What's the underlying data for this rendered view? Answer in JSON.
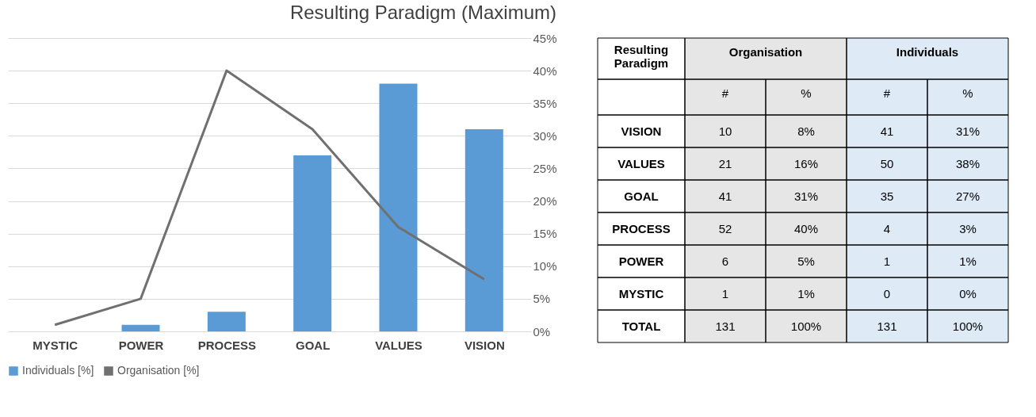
{
  "chart_data": [
    {
      "type": "bar",
      "title": "Resulting Paradigm (Maximum)",
      "categories": [
        "MYSTIC",
        "POWER",
        "PROCESS",
        "GOAL",
        "VALUES",
        "VISION"
      ],
      "series": [
        {
          "name": "Individuals [%]",
          "color": "#5b9bd5",
          "values": [
            0,
            1,
            3,
            27,
            38,
            31
          ]
        },
        {
          "name": "Organisation [%]",
          "type": "line",
          "color": "#707070",
          "values": [
            1,
            5,
            40,
            31,
            16,
            8
          ]
        }
      ],
      "ylim": [
        0,
        45
      ],
      "yticks": [
        {
          "value": 0,
          "label": "0%"
        },
        {
          "value": 5,
          "label": "5%"
        },
        {
          "value": 10,
          "label": "10%"
        },
        {
          "value": 15,
          "label": "15%"
        },
        {
          "value": 20,
          "label": "20%"
        },
        {
          "value": 25,
          "label": "25%"
        },
        {
          "value": 30,
          "label": "30%"
        },
        {
          "value": 35,
          "label": "35%"
        },
        {
          "value": 40,
          "label": "40%"
        },
        {
          "value": 45,
          "label": "45%"
        }
      ],
      "grid": "y",
      "legend": "bottom"
    },
    {
      "type": "other",
      "ylabel": "Resulting Paradigm",
      "categories": [
        "Organisation",
        "Individuals"
      ],
      "annotations": [
        "#",
        "%"
      ],
      "y_categories": [
        "VISION",
        "VALUES",
        "GOAL",
        "PROCESS",
        "POWER",
        "MYSTIC",
        "TOTAL"
      ],
      "cell_labels": [
        [
          "10",
          "8%",
          "41",
          "31%"
        ],
        [
          "21",
          "16%",
          "50",
          "38%"
        ],
        [
          "41",
          "31%",
          "35",
          "27%"
        ],
        [
          "52",
          "40%",
          "4",
          "3%"
        ],
        [
          "6",
          "5%",
          "1",
          "1%"
        ],
        [
          "1",
          "1%",
          "0",
          "0%"
        ],
        [
          "131",
          "100%",
          "131",
          "100%"
        ]
      ],
      "colors": [
        "#ffffff",
        "#e7e6e6",
        "#deebf7"
      ]
    }
  ]
}
